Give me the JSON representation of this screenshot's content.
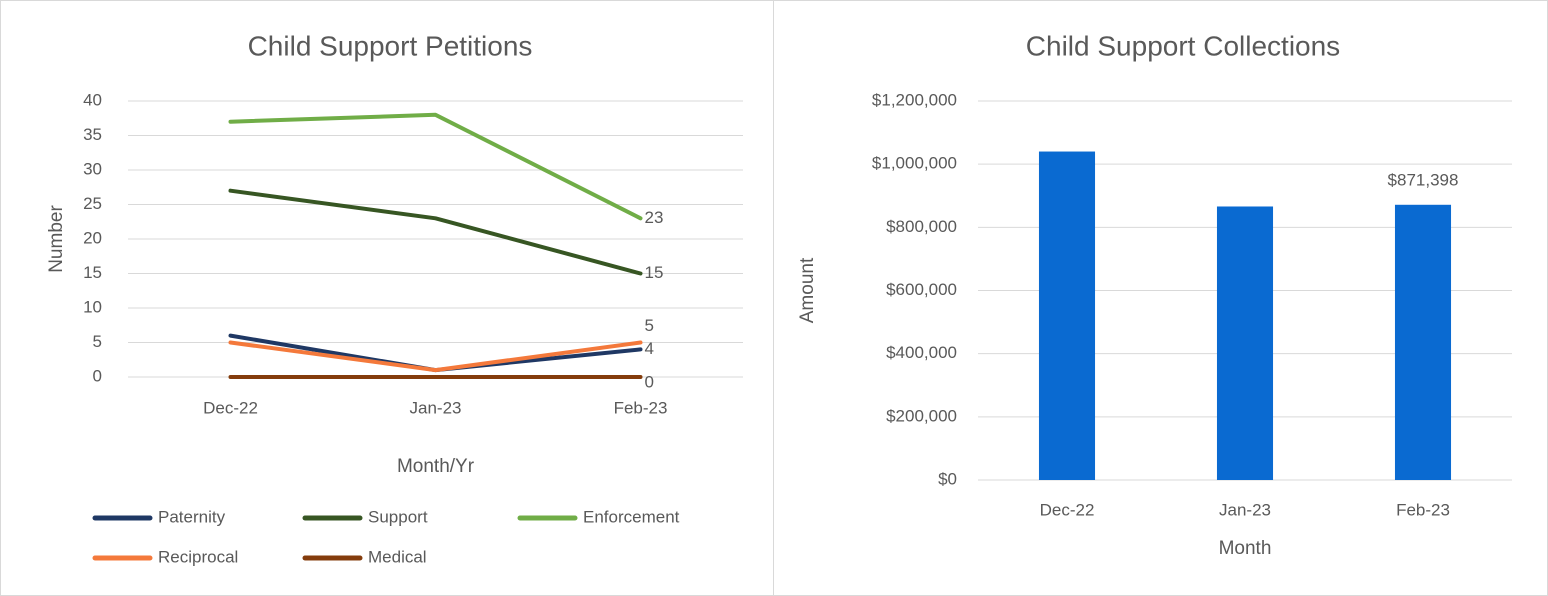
{
  "chart_data": [
    {
      "type": "line",
      "title": "Child Support Petitions",
      "x_label": "Month/Yr",
      "y_label": "Number",
      "categories": [
        "Dec-22",
        "Jan-23",
        "Feb-23"
      ],
      "series": [
        {
          "name": "Paternity",
          "color": "#1f3864",
          "values": [
            6,
            1,
            4
          ]
        },
        {
          "name": "Support",
          "color": "#375623",
          "values": [
            27,
            23,
            15
          ]
        },
        {
          "name": "Enforcement",
          "color": "#70ad47",
          "values": [
            37,
            38,
            23
          ]
        },
        {
          "name": "Reciprocal",
          "color": "#f4793b",
          "values": [
            5,
            1,
            5
          ]
        },
        {
          "name": "Medical",
          "color": "#843c0c",
          "values": [
            0,
            0,
            0
          ]
        }
      ],
      "data_labels": "last",
      "ylim": [
        0,
        40
      ],
      "yticks": [
        0,
        5,
        10,
        15,
        20,
        25,
        30,
        35,
        40
      ],
      "grid": true,
      "legend": "bottom"
    },
    {
      "type": "bar",
      "title": "Child Support Collections",
      "x_label": "Month",
      "y_label": "Amount",
      "categories": [
        "Dec-22",
        "Jan-23",
        "Feb-23"
      ],
      "values": [
        1040000,
        866000,
        871398
      ],
      "value_labels": [
        null,
        null,
        "$871,398"
      ],
      "color": "#0a6ad1",
      "ylim": [
        0,
        1200000
      ],
      "yticks": [
        {
          "value": 0,
          "label": "$0"
        },
        {
          "value": 200000,
          "label": "$200,000"
        },
        {
          "value": 400000,
          "label": "$400,000"
        },
        {
          "value": 600000,
          "label": "$600,000"
        },
        {
          "value": 800000,
          "label": "$800,000"
        },
        {
          "value": 1000000,
          "label": "$1,000,000"
        },
        {
          "value": 1200000,
          "label": "$1,200,000"
        }
      ],
      "grid": true
    }
  ]
}
